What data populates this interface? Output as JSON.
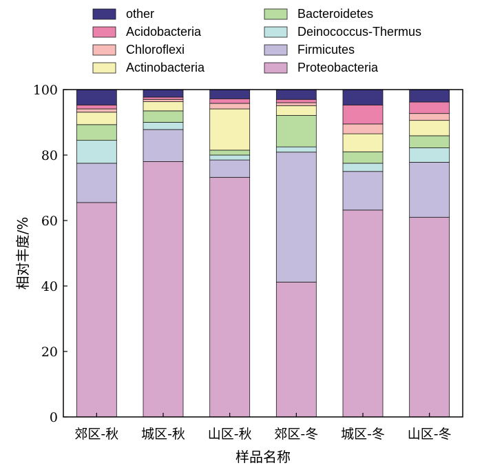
{
  "chart_data": {
    "type": "bar",
    "stacked": true,
    "categories": [
      "郊区-秋",
      "城区-秋",
      "山区-秋",
      "郊区-冬",
      "城区-冬",
      "山区-冬"
    ],
    "series": [
      {
        "name": "Proteobacteria",
        "color": "#d8a7cc",
        "values": [
          65.5,
          78.0,
          73.2,
          41.2,
          63.2,
          61.0
        ]
      },
      {
        "name": "Firmicutes",
        "color": "#c4bcdc",
        "values": [
          12.0,
          9.8,
          5.3,
          39.7,
          11.8,
          16.8
        ]
      },
      {
        "name": "Deinococcus-Thermus",
        "color": "#c0e4e4",
        "values": [
          7.0,
          2.2,
          1.5,
          1.6,
          2.5,
          4.4
        ]
      },
      {
        "name": "Bacteroidetes",
        "color": "#b9dca0",
        "values": [
          4.8,
          3.5,
          1.5,
          9.6,
          3.5,
          3.7
        ]
      },
      {
        "name": "Actinobacteria",
        "color": "#f6f2b4",
        "values": [
          3.8,
          2.8,
          12.6,
          3.0,
          5.5,
          4.7
        ]
      },
      {
        "name": "Chloroflexi",
        "color": "#f7bcb8",
        "values": [
          1.0,
          0.7,
          1.7,
          0.9,
          3.0,
          2.1
        ]
      },
      {
        "name": "Acidobacteria",
        "color": "#ea82ac",
        "values": [
          1.2,
          0.7,
          1.4,
          1.0,
          5.8,
          3.5
        ]
      },
      {
        "name": "other",
        "color": "#3d3680",
        "values": [
          4.7,
          2.3,
          2.8,
          3.0,
          4.7,
          3.8
        ]
      }
    ],
    "legend_order": [
      "other",
      "Acidobacteria",
      "Chloroflexi",
      "Actinobacteria",
      "Bacteroidetes",
      "Deinococcus-Thermus",
      "Firmicutes",
      "Proteobacteria"
    ],
    "legend_position": "top",
    "xlabel": "样品名称",
    "ylabel": "相对丰度/%",
    "ylim": [
      0,
      100
    ],
    "yticks": [
      "0",
      "20",
      "40",
      "60",
      "80",
      "100"
    ],
    "grid": false
  }
}
